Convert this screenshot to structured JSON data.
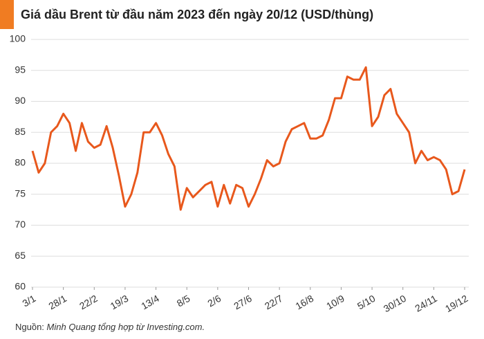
{
  "chart_data": {
    "type": "line",
    "title": "Giá dầu Brent từ đầu năm 2023 đến ngày 20/12 (USD/thùng)",
    "source_prefix": "Nguồn: ",
    "source": "Minh Quang tổng hợp từ Investing.com.",
    "categories": [
      "3/1",
      null,
      null,
      null,
      null,
      "28/1",
      null,
      null,
      null,
      null,
      "22/2",
      null,
      null,
      null,
      null,
      "19/3",
      null,
      null,
      null,
      null,
      "13/4",
      null,
      null,
      null,
      null,
      "8/5",
      null,
      null,
      null,
      null,
      "2/6",
      null,
      null,
      null,
      null,
      "27/6",
      null,
      null,
      null,
      null,
      "22/7",
      null,
      null,
      null,
      null,
      "16/8",
      null,
      null,
      null,
      null,
      "10/9",
      null,
      null,
      null,
      null,
      "5/10",
      null,
      null,
      null,
      null,
      "30/10",
      null,
      null,
      null,
      null,
      "24/11",
      null,
      null,
      null,
      null,
      "19/12"
    ],
    "series": [
      {
        "color": "#e8581c",
        "values": [
          82,
          78.5,
          80,
          85,
          86,
          88,
          86.5,
          82,
          86.5,
          83.5,
          82.5,
          83,
          86,
          82.5,
          78,
          73,
          75,
          78.5,
          85,
          85,
          86.5,
          84.5,
          81.5,
          79.5,
          72.5,
          76,
          74.5,
          75.5,
          76.5,
          77,
          73,
          76.5,
          73.5,
          76.5,
          76,
          73,
          75,
          77.5,
          80.5,
          79.5,
          80,
          83.5,
          85.5,
          86,
          86.5,
          84,
          84,
          84.5,
          87,
          90.5,
          90.5,
          94,
          93.5,
          93.5,
          95.5,
          86,
          87.5,
          91,
          92,
          88,
          86.5,
          85,
          80,
          82,
          80.5,
          81,
          80.5,
          79,
          75,
          75.5,
          79
        ]
      }
    ],
    "ylim": [
      60,
      100
    ],
    "yticks": [
      60,
      65,
      70,
      75,
      80,
      85,
      90,
      95,
      100
    ],
    "grid": true
  }
}
